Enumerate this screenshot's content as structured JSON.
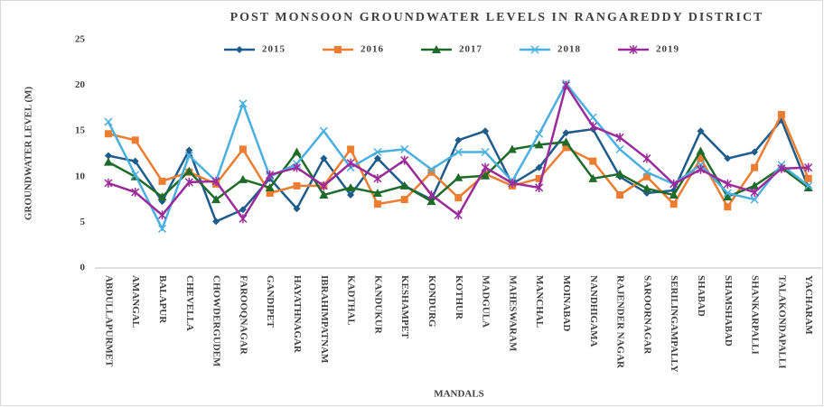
{
  "chart_data": {
    "type": "line",
    "title": "POST MONSOON GROUNDWATER LEVELS IN RANGAREDDY DISTRICT",
    "x_label": "MANDALS",
    "y_label": "GROUNDWATER LEVEL (M)",
    "categories": [
      "ABDULLAPURMET",
      "AMANGAL",
      "BALAPUR",
      "CHEVELLA",
      "CHOWDERGUDEM",
      "FAROOQNAGAR",
      "GANDIPET",
      "HAYATHNAGAR",
      "IBRAHIMPATNAM",
      "KADTHAL",
      "KANDUKUR",
      "KESHAMPET",
      "KONDURG",
      "KOTHUR",
      "MADGULA",
      "MAHESWARAM",
      "MANCHAL",
      "MOINABAD",
      "NANDHIGAMA",
      "RAJENDER NAGAR",
      "SAROORNAGAR",
      "SERILINGAMPALLY",
      "SHABAD",
      "SHAMSHABAD",
      "SHANKARPALLI",
      "TALAKONDAPALLI",
      "YACHARAM"
    ],
    "series": [
      {
        "name": "2015",
        "color": "#1f5c8b",
        "marker": "diamond",
        "values": [
          12.3,
          11.7,
          7.3,
          12.9,
          5.1,
          6.4,
          9.8,
          6.5,
          12,
          8,
          12,
          9,
          7.5,
          14,
          15,
          9.2,
          11,
          14.8,
          15.2,
          10,
          8.2,
          8.5,
          15,
          12,
          12.7,
          16.2,
          8.8
        ]
      },
      {
        "name": "2016",
        "color": "#ed7d31",
        "marker": "square",
        "values": [
          14.7,
          14,
          9.5,
          10.5,
          9.2,
          13,
          8.2,
          9,
          9,
          13,
          7,
          7.5,
          10.5,
          7.7,
          10.3,
          9,
          9.8,
          13.2,
          11.7,
          8,
          10,
          7,
          12,
          6.7,
          11,
          16.8,
          9.8
        ]
      },
      {
        "name": "2017",
        "color": "#1f6b2a",
        "marker": "triangle",
        "values": [
          11.6,
          10,
          7.8,
          10.6,
          7.5,
          9.7,
          8.8,
          12.7,
          8,
          8.8,
          8.2,
          9,
          7.3,
          9.9,
          10.1,
          13,
          13.5,
          13.8,
          9.8,
          10.3,
          8.7,
          8,
          12.8,
          7.8,
          9,
          11,
          8.8
        ]
      },
      {
        "name": "2018",
        "color": "#4ab0e0",
        "marker": "x",
        "values": [
          16,
          10.2,
          4.3,
          12.3,
          9.5,
          18,
          10,
          11.4,
          15,
          11,
          12.7,
          13,
          10.8,
          12.7,
          12.7,
          9.5,
          14.7,
          20.2,
          16.5,
          13,
          10.5,
          9.2,
          11.3,
          8.2,
          7.5,
          11.3,
          9
        ]
      },
      {
        "name": "2019",
        "color": "#9b2b9b",
        "marker": "star",
        "values": [
          9.3,
          8.3,
          5.8,
          9.4,
          9.5,
          5.4,
          10.2,
          11,
          9,
          11.5,
          9.8,
          11.8,
          8,
          5.8,
          11,
          9.3,
          8.8,
          20,
          15.5,
          14.3,
          12,
          9.2,
          10.8,
          9.2,
          8.3,
          10.9,
          11
        ]
      }
    ],
    "ylim": [
      0,
      25
    ],
    "yticks": [
      0,
      5,
      10,
      15,
      20,
      25
    ],
    "grid": false,
    "legend": "top"
  }
}
